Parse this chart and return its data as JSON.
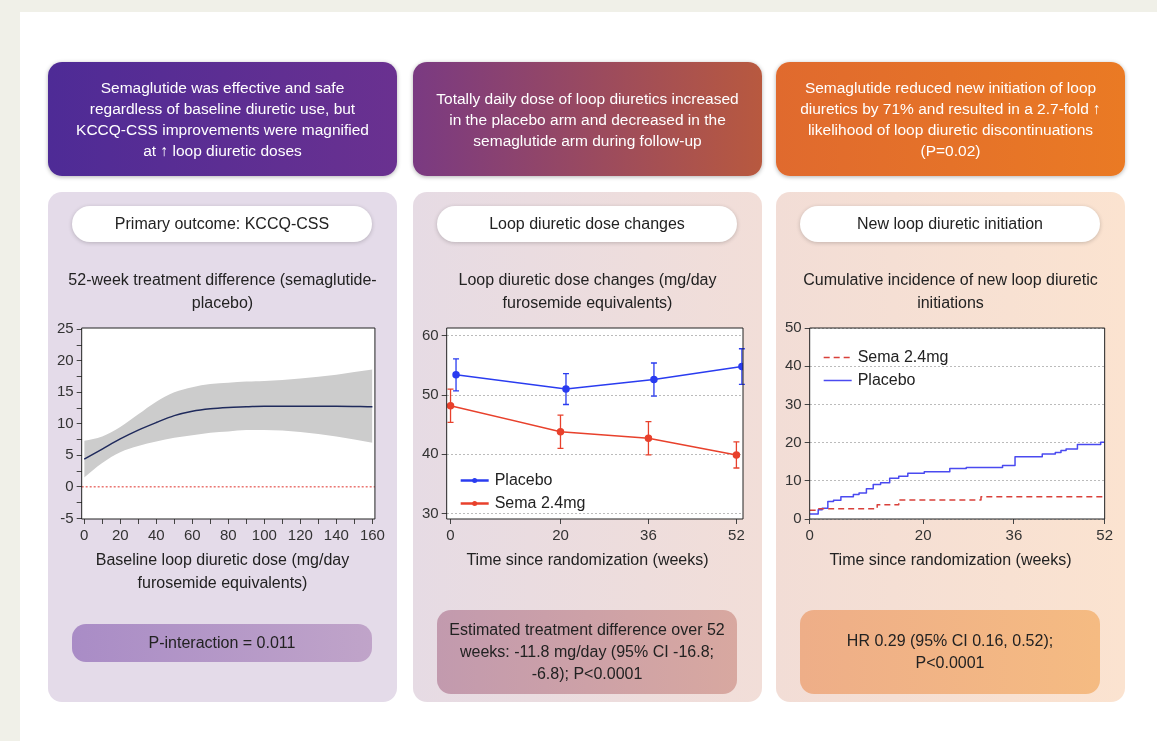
{
  "chart_data": [
    {
      "type": "line",
      "title": "Primary outcome: KCCQ-CSS",
      "subtitle": "52-week treatment difference (semaglutide-placebo)",
      "xlabel": "Baseline loop diuretic dose (mg/day furosemide equivalents)",
      "annotations": [
        "Semaglutide was effective and safe regardless of baseline diuretic use, but KCCQ-CSS improvements were magnified at ↑ loop diuretic doses",
        "P-interaction = 0.011"
      ],
      "xlim": [
        -1.4,
        161.4
      ],
      "xticks": [
        0,
        {
          "value": 10,
          "label": null
        },
        20,
        {
          "value": 30,
          "label": null
        },
        40,
        {
          "value": 50,
          "label": null
        },
        60,
        {
          "value": 70,
          "label": null
        },
        80,
        {
          "value": 90,
          "label": null
        },
        100,
        {
          "value": 110,
          "label": null
        },
        120,
        {
          "value": 130,
          "label": null
        },
        140,
        {
          "value": 150,
          "label": null
        },
        160
      ],
      "ylim": [
        -5.1,
        25.2
      ],
      "yticks": [
        -5,
        {
          "value": -2.5,
          "label": null
        },
        0,
        {
          "value": 2.5,
          "label": null
        },
        5,
        {
          "value": 7.5,
          "label": null
        },
        10,
        {
          "value": 12.5,
          "label": null
        },
        15,
        {
          "value": 17.5,
          "label": null
        },
        20,
        {
          "value": 22.5,
          "label": null
        },
        25
      ],
      "grid": false,
      "marker": "none",
      "ref_lines": [
        {
          "axis": "y",
          "value": 0,
          "label": null,
          "color": "#e0302a",
          "line_style": "dotted"
        }
      ],
      "series": [
        {
          "color": "#1f2a5c",
          "x": [
            0,
            10,
            20,
            30,
            40,
            50,
            60,
            70,
            80,
            90,
            100,
            120,
            140,
            160
          ],
          "values": [
            4.4,
            6.0,
            7.6,
            9.0,
            10.2,
            11.3,
            12.0,
            12.4,
            12.6,
            12.7,
            12.8,
            12.8,
            12.8,
            12.7
          ],
          "lower": [
            1.5,
            3.8,
            5.5,
            6.5,
            7.2,
            7.8,
            8.2,
            8.6,
            8.8,
            9.0,
            9.0,
            8.7,
            8.0,
            7.0
          ],
          "upper": [
            7.3,
            8.0,
            9.5,
            11.5,
            13.5,
            15.0,
            15.8,
            16.3,
            16.5,
            16.7,
            16.8,
            17.2,
            17.8,
            18.6
          ]
        }
      ]
    },
    {
      "type": "line",
      "title": "Loop diuretic dose changes",
      "subtitle": "Loop diuretic dose changes (mg/day furosemide equivalents)",
      "xlabel": "Time since randomization (weeks)",
      "annotations": [
        "Totally daily dose of loop diuretics increased in the placebo arm and decreased in the semaglutide arm during follow-up",
        "Estimated treatment difference over 52 weeks: -11.8 mg/day (95% CI -16.8; -6.8); P<0.0001"
      ],
      "xlim": [
        -0.7,
        53.2
      ],
      "xticks": [
        0,
        20,
        36,
        52
      ],
      "ylim": [
        29.1,
        61.3
      ],
      "yticks": [
        30,
        40,
        50,
        60
      ],
      "grid": "y",
      "legend": "bottom left",
      "marker": "circle",
      "series": [
        {
          "name": "Placebo",
          "color": "#2a3cf0",
          "x": [
            1,
            21,
            37,
            53
          ],
          "values": [
            53.4,
            51.0,
            52.6,
            54.8
          ],
          "errors": [
            2.7,
            2.6,
            2.8,
            3.0
          ]
        },
        {
          "name": "Sema 2.4mg",
          "color": "#e8412c",
          "x": [
            0,
            20,
            36,
            52
          ],
          "values": [
            48.2,
            43.8,
            42.7,
            39.9
          ],
          "errors": [
            2.8,
            2.8,
            2.8,
            2.2
          ]
        }
      ]
    },
    {
      "type": "step",
      "title": "New loop diuretic initiation",
      "subtitle": "Cumulative incidence of new loop diuretic initiations",
      "xlabel": "Time since randomization (weeks)",
      "annotations": [
        "Semaglutide reduced new initiation of loop diuretics by 71% and resulted in a 2.7-fold ↑ likelihood of loop diuretic discontinuations (P=0.02)",
        "HR 0.29 (95% CI 0.16, 0.52); P<0.0001"
      ],
      "xlim": [
        0,
        52
      ],
      "xticks": [
        0,
        20,
        36,
        52
      ],
      "ylim": [
        0,
        50
      ],
      "yticks": [
        0,
        10,
        20,
        30,
        40,
        50
      ],
      "grid": "y",
      "legend": "top left",
      "marker": "none",
      "series": [
        {
          "name": "Sema 2.4mg",
          "color": "#d9403a",
          "line_style": "dashed",
          "x": [
            0,
            1.6,
            11.9,
            15.7,
            30.2,
            52
          ],
          "values": [
            2.3,
            2.7,
            3.7,
            5.0,
            5.8,
            5.8
          ]
        },
        {
          "name": "Placebo",
          "color": "#4a4af0",
          "line_style": "solid",
          "x": [
            0,
            1.5,
            2.2,
            3.2,
            4.2,
            5.5,
            7.7,
            8.7,
            10,
            11.2,
            12.5,
            14.1,
            15.7,
            17.3,
            20.2,
            24.7,
            27.6,
            34,
            36.2,
            41,
            43.3,
            44.3,
            45.2,
            47.2,
            51.3,
            52
          ],
          "values": [
            1.3,
            2.4,
            2.8,
            4.6,
            4.9,
            5.8,
            6.4,
            6.8,
            7.9,
            9.0,
            9.5,
            10.7,
            11.2,
            12.0,
            12.4,
            13.2,
            13.5,
            14.0,
            16.3,
            17.0,
            17.4,
            17.9,
            18.3,
            19.5,
            20.1,
            20.1
          ]
        }
      ]
    }
  ]
}
